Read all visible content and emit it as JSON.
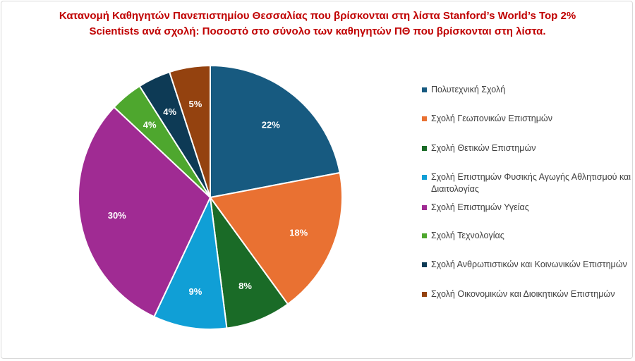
{
  "chart_data": {
    "type": "pie",
    "title_line1": "Κατανομή Καθηγητών Πανεπιστημίου Θεσσαλίας που βρίσκονται στη λίστα Stanford’s World’s Top 2%",
    "title_line2": "Scientists ανά σχολή: Ποσοστό στο σύνολο των καθηγητών  ΠΘ που βρίσκονται στη λίστα.",
    "legend_position": "right",
    "categories": [
      "Πολυτεχνική Σχολή",
      "Σχολή Γεωπονικών Επιστημών",
      "Σχολή Θετικών Επιστημών",
      "Σχολή Επιστημών Φυσικής Αγωγής Αθλητισμού και Διαιτολογίας",
      "Σχολή Επιστημών Υγείας",
      "Σχολή Τεχνολογίας",
      "Σχολή Ανθρωπιστικών και Κοινωνικών Επιστημών",
      "Σχολή Οικονομικών και Διοικητικών Επιστημών"
    ],
    "values": [
      22,
      18,
      8,
      9,
      30,
      4,
      4,
      5
    ],
    "labels": [
      "22%",
      "18%",
      "8%",
      "9%",
      "30%",
      "4%",
      "4%",
      "5%"
    ],
    "colors": [
      "#175a80",
      "#e97132",
      "#1a6b27",
      "#109fd6",
      "#a02b93",
      "#4ea72e",
      "#0d3a55",
      "#94420f"
    ]
  }
}
